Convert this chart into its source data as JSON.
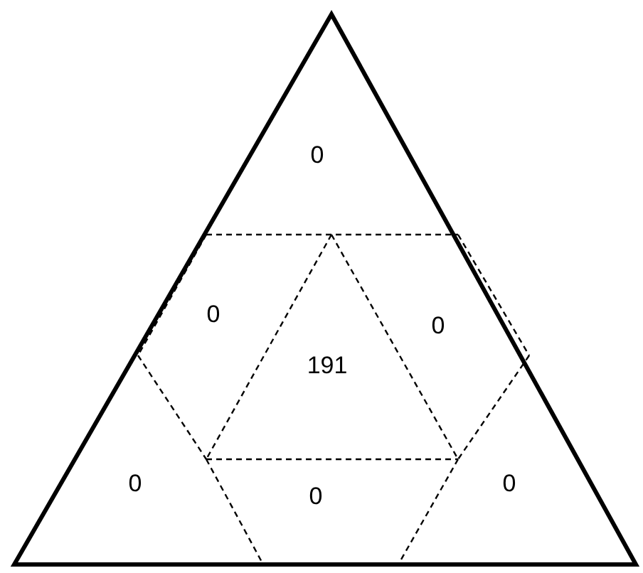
{
  "chart_data": {
    "type": "other",
    "categories": [
      null,
      null,
      null,
      null,
      null,
      null,
      null
    ],
    "values": [
      0,
      0,
      0,
      191,
      0,
      0,
      0
    ],
    "data_labels": true
  }
}
